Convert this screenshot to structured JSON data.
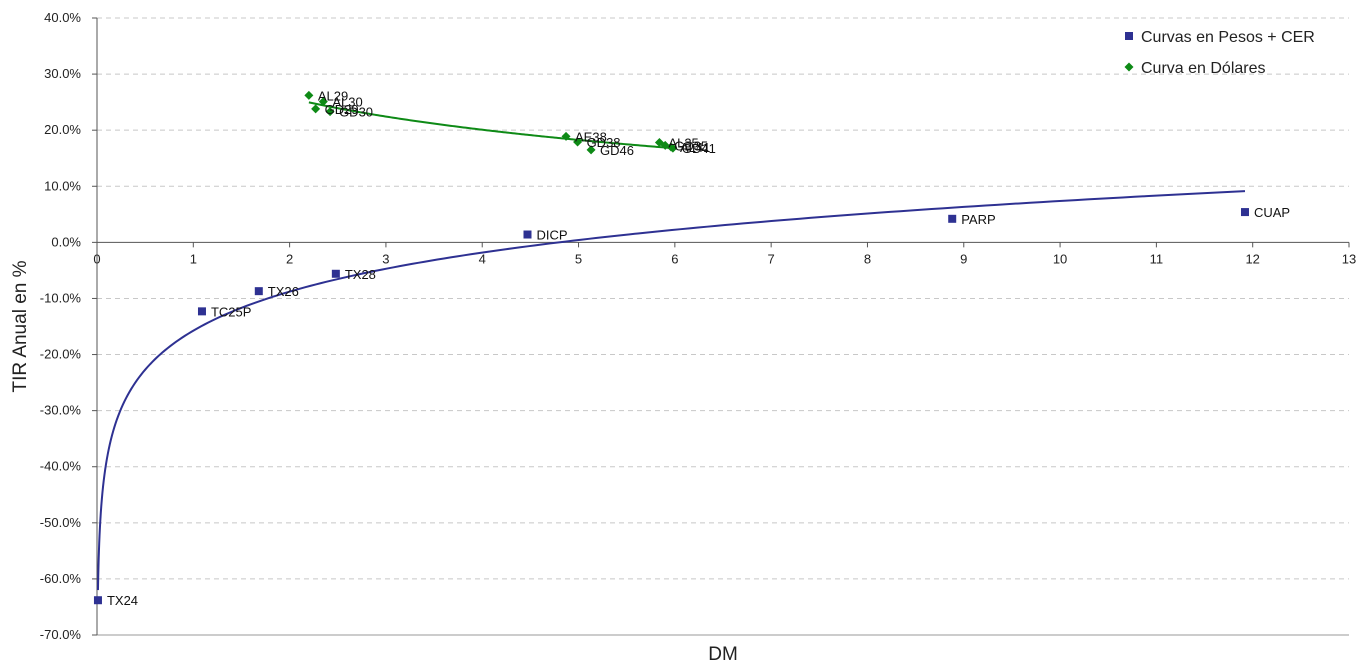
{
  "chart_data": {
    "type": "scatter",
    "title": "",
    "xlabel": "DM",
    "ylabel": "TIR Anual en %",
    "xlim": [
      0,
      13
    ],
    "ylim": [
      -70,
      40
    ],
    "x_ticks": [
      0,
      1,
      2,
      3,
      4,
      5,
      6,
      7,
      8,
      9,
      10,
      11,
      12,
      13
    ],
    "y_ticks": [
      40,
      30,
      20,
      10,
      0,
      -10,
      -20,
      -30,
      -40,
      -50,
      -60,
      -70
    ],
    "y_tick_suffix": "%",
    "grid": "horizontal dashed",
    "legend_position": "top-right",
    "series": [
      {
        "name": "Curvas en Pesos + CER",
        "color": "#2E3192",
        "marker": "square",
        "trendline": "logarithmic",
        "points": [
          {
            "label": "TX24",
            "x": 0.01,
            "y": -63.8
          },
          {
            "label": "TC25P",
            "x": 1.09,
            "y": -12.3
          },
          {
            "label": "TX26",
            "x": 1.68,
            "y": -8.7
          },
          {
            "label": "TX28",
            "x": 2.48,
            "y": -5.6
          },
          {
            "label": "DICP",
            "x": 4.47,
            "y": 1.4
          },
          {
            "label": "PARP",
            "x": 8.88,
            "y": 4.2
          },
          {
            "label": "CUAP",
            "x": 11.92,
            "y": 5.4
          }
        ]
      },
      {
        "name": "Curva en Dólares",
        "color": "#0E8A16",
        "marker": "diamond",
        "trendline": "logarithmic",
        "points": [
          {
            "label": "AL29",
            "x": 2.2,
            "y": 26.2
          },
          {
            "label": "AL30",
            "x": 2.35,
            "y": 25.1
          },
          {
            "label": "GD29",
            "x": 2.27,
            "y": 23.8
          },
          {
            "label": "GD30",
            "x": 2.42,
            "y": 23.3
          },
          {
            "label": "AE38",
            "x": 4.87,
            "y": 18.9
          },
          {
            "label": "GD38",
            "x": 4.99,
            "y": 17.9
          },
          {
            "label": "GD46",
            "x": 5.13,
            "y": 16.5
          },
          {
            "label": "AL35",
            "x": 5.84,
            "y": 17.8
          },
          {
            "label": "GD35",
            "x": 5.9,
            "y": 17.3
          },
          {
            "label": "AL41",
            "x": 5.96,
            "y": 17.0
          },
          {
            "label": "GD41",
            "x": 5.98,
            "y": 16.8
          }
        ]
      }
    ]
  }
}
